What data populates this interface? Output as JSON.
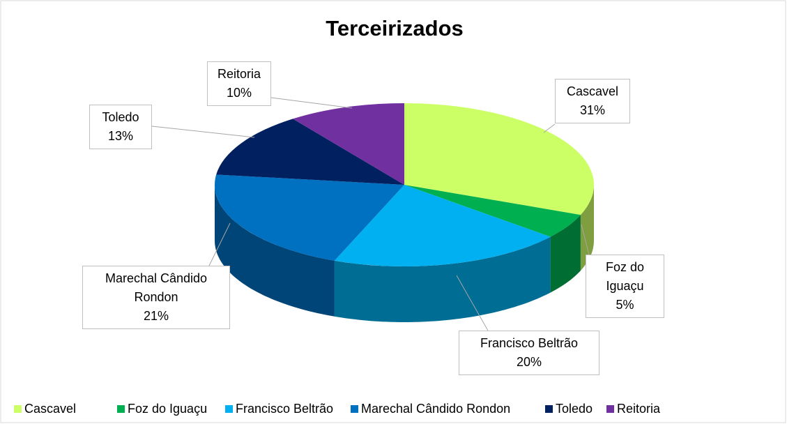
{
  "chart_data": {
    "type": "pie",
    "title": "Terceirizados",
    "categories": [
      "Cascavel",
      "Foz do Iguaçu",
      "Francisco Beltrão",
      "Marechal Cândido Rondon",
      "Toledo",
      "Reitoria"
    ],
    "values": [
      31,
      5,
      20,
      21,
      13,
      10
    ],
    "value_labels": [
      "31%",
      "5%",
      "20%",
      "21%",
      "13%",
      "10%"
    ],
    "colors": [
      "#ccff66",
      "#00b050",
      "#00b0f0",
      "#0070c0",
      "#002060",
      "#7030a0"
    ],
    "legend": "bottom"
  }
}
